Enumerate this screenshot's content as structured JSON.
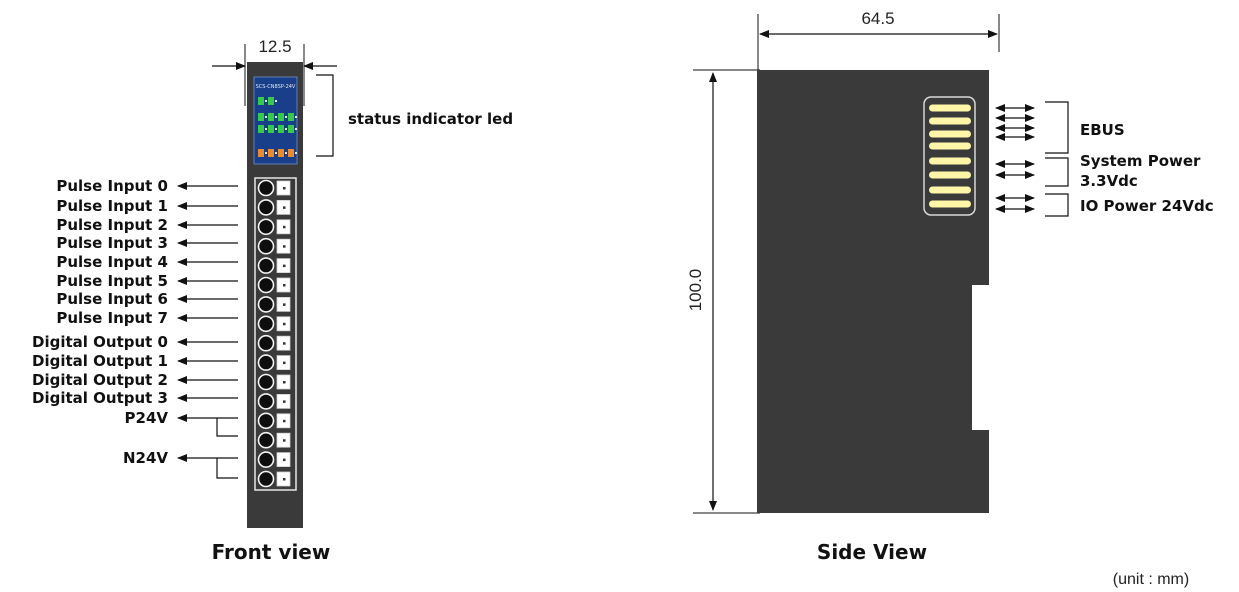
{
  "front_view": {
    "caption": "Front view",
    "width_dim": "12.5",
    "module_label": "SCS-CN8SP-24V",
    "status_led_label": "status indicator led",
    "pin_labels": [
      "Pulse Input 0",
      "Pulse Input 1",
      "Pulse Input 2",
      "Pulse Input 3",
      "Pulse Input 4",
      "Pulse Input 5",
      "Pulse Input 6",
      "Pulse Input 7",
      "Digital Output 0",
      "Digital Output 1",
      "Digital Output 2",
      "Digital Output 3"
    ],
    "power_labels": {
      "p24v": "P24V",
      "n24v": "N24V"
    }
  },
  "side_view": {
    "caption": "Side View",
    "depth_dim": "64.5",
    "height_dim": "100.0",
    "connector_labels": {
      "ebus": "EBUS",
      "system_power_1": "System Power",
      "system_power_2": "3.3Vdc",
      "io_power": "IO Power 24Vdc"
    }
  },
  "unit_note": "(unit : mm)",
  "colors": {
    "body": "#3a3a3a",
    "led_panel": "#1a3f8a",
    "led_green": "#33cc44",
    "led_orange": "#f08a24",
    "contacts": "#fff6a8"
  }
}
